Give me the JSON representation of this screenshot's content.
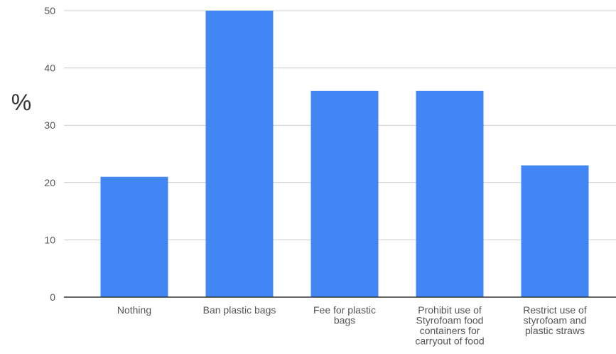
{
  "chart_data": {
    "type": "bar",
    "title": "",
    "xlabel": "",
    "ylabel": "%",
    "ylim": [
      0,
      50
    ],
    "yticks": [
      0,
      10,
      20,
      30,
      40,
      50
    ],
    "categories": [
      "Nothing",
      "Ban plastic bags",
      "Fee for plastic bags",
      "Prohibit use of Styrofoam food containers for carryout of food",
      "Restrict use of styrofoam and plastic straws"
    ],
    "category_lines": [
      [
        "Nothing"
      ],
      [
        "Ban plastic bags"
      ],
      [
        "Fee for plastic",
        "bags"
      ],
      [
        "Prohibit use of",
        "Styrofoam food",
        "containers for",
        "carryout of food"
      ],
      [
        "Restrict use of",
        "styrofoam and",
        "plastic straws"
      ]
    ],
    "values": [
      21,
      50,
      36,
      36,
      23
    ],
    "grid": true,
    "bar_color": "#4285f4",
    "grid_color": "#cccccc",
    "axis_color": "#333333"
  }
}
